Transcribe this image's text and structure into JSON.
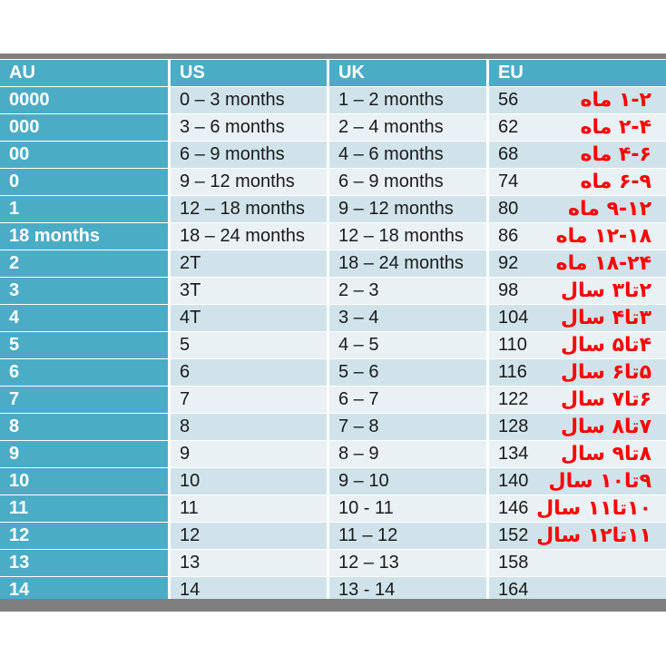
{
  "table": {
    "headers": [
      "AU",
      "US",
      "UK",
      "EU"
    ],
    "rows": [
      {
        "au": "0000",
        "us": "0 – 3 months",
        "uk": "1 – 2 months",
        "eu": "56",
        "note": "۱-۲ ماه"
      },
      {
        "au": "000",
        "us": "3 – 6 months",
        "uk": "2 – 4 months",
        "eu": "62",
        "note": "۲-۴ ماه"
      },
      {
        "au": "00",
        "us": "6 – 9 months",
        "uk": "4 – 6 months",
        "eu": "68",
        "note": "۴-۶ ماه"
      },
      {
        "au": "0",
        "us": "9 – 12 months",
        "uk": "6 – 9 months",
        "eu": "74",
        "note": "۶-۹ ماه"
      },
      {
        "au": "1",
        "us": "12 – 18 months",
        "uk": "9 – 12 months",
        "eu": "80",
        "note": "۹-۱۲ ماه"
      },
      {
        "au": "18 months",
        "us": "18 – 24 months",
        "uk": "12 – 18 months",
        "eu": "86",
        "note": "۱۲-۱۸ ماه"
      },
      {
        "au": "2",
        "us": "2T",
        "uk": "18 – 24 months",
        "eu": "92",
        "note": "۱۸-۲۴ ماه"
      },
      {
        "au": "3",
        "us": "3T",
        "uk": "2 – 3",
        "eu": "98",
        "note": "۲تا۳ سال"
      },
      {
        "au": "4",
        "us": "4T",
        "uk": "3 – 4",
        "eu": "104",
        "note": "۳تا۴ سال"
      },
      {
        "au": "5",
        "us": "5",
        "uk": "4 – 5",
        "eu": "110",
        "note": "۴تا۵ سال"
      },
      {
        "au": "6",
        "us": "6",
        "uk": "5 – 6",
        "eu": "116",
        "note": "۵تا۶ سال"
      },
      {
        "au": "7",
        "us": "7",
        "uk": "6 – 7",
        "eu": "122",
        "note": "۶تا۷ سال"
      },
      {
        "au": "8",
        "us": "8",
        "uk": "7 – 8",
        "eu": "128",
        "note": "۷تا۸ سال"
      },
      {
        "au": "9",
        "us": "9",
        "uk": "8 – 9",
        "eu": "134",
        "note": "۸تا۹ سال"
      },
      {
        "au": "10",
        "us": "10",
        "uk": "9 – 10",
        "eu": "140",
        "note": "۹تا۱۰ سال"
      },
      {
        "au": "11",
        "us": "11",
        "uk": "10 - 11",
        "eu": "146",
        "note": "۱۰تا۱۱ سال"
      },
      {
        "au": "12",
        "us": "12",
        "uk": "11 – 12",
        "eu": "152",
        "note": "۱۱تا۱۲ سال"
      },
      {
        "au": "13",
        "us": "13",
        "uk": "12 – 13",
        "eu": "158",
        "note": ""
      },
      {
        "au": "14",
        "us": "14",
        "uk": "13 - 14",
        "eu": "164",
        "note": ""
      }
    ]
  },
  "colors": {
    "header_bg": "#4bacc6",
    "row_even_bg": "#d0e3ea",
    "row_odd_bg": "#e9f1f5",
    "note_color": "#ff0000",
    "frame_bar": "#7f7f7f"
  }
}
